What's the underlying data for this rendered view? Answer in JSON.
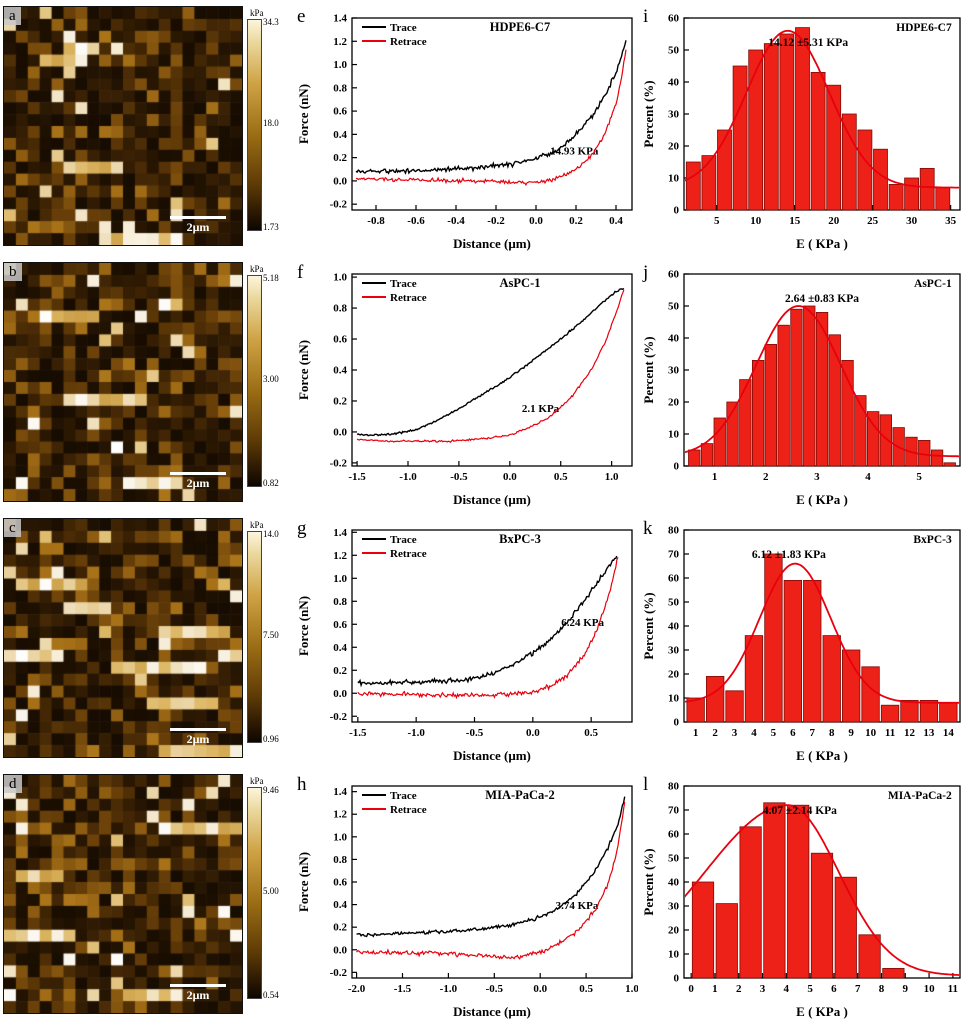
{
  "colors": {
    "bar": "#ee2119",
    "bar_edge": "#7e0b05",
    "fit": "#e8000d",
    "trace": "#000000",
    "retrace": "#e8000d"
  },
  "maps": [
    {
      "panel": "a",
      "unit": "kPa",
      "ticks": [
        "34.3",
        "18.0",
        "1.73"
      ],
      "scale_label": "2μm",
      "seed": 101
    },
    {
      "panel": "b",
      "unit": "kPa",
      "ticks": [
        "5.18",
        "3.00",
        "0.82"
      ],
      "scale_label": "2μm",
      "seed": 202
    },
    {
      "panel": "c",
      "unit": "kPa",
      "ticks": [
        "14.0",
        "7.50",
        "0.96"
      ],
      "scale_label": "2μm",
      "seed": 303
    },
    {
      "panel": "d",
      "unit": "kPa",
      "ticks": [
        "9.46",
        "5.00",
        "0.54"
      ],
      "scale_label": "2μm",
      "seed": 404
    }
  ],
  "chart_data": [
    {
      "panel": "e",
      "type": "line",
      "title": "HDPE6-C7",
      "xlabel": "Distance (μm)",
      "ylabel": "Force (nN)",
      "xlim": [
        -0.92,
        0.48
      ],
      "ylim": [
        -0.25,
        1.4
      ],
      "xticks": [
        -0.8,
        -0.6,
        -0.4,
        -0.2,
        0.0,
        0.2,
        0.4
      ],
      "yticks": [
        -0.2,
        0.0,
        0.2,
        0.4,
        0.6,
        0.8,
        1.0,
        1.2,
        1.4
      ],
      "legend": [
        "Trace",
        "Retrace"
      ],
      "annotation": "14.93 KPa",
      "ann_pos": [
        0.88,
        0.71
      ],
      "series": [
        {
          "name": "Trace",
          "color": "#000000",
          "noise": 0.013,
          "points": [
            [
              -0.9,
              0.08
            ],
            [
              -0.75,
              0.085
            ],
            [
              -0.6,
              0.09
            ],
            [
              -0.45,
              0.1
            ],
            [
              -0.3,
              0.115
            ],
            [
              -0.2,
              0.13
            ],
            [
              -0.1,
              0.155
            ],
            [
              -0.02,
              0.18
            ],
            [
              0.05,
              0.22
            ],
            [
              0.12,
              0.28
            ],
            [
              0.2,
              0.4
            ],
            [
              0.28,
              0.56
            ],
            [
              0.35,
              0.75
            ],
            [
              0.41,
              0.97
            ],
            [
              0.45,
              1.2
            ]
          ]
        },
        {
          "name": "Retrace",
          "color": "#e8000d",
          "noise": 0.01,
          "points": [
            [
              -0.9,
              0.02
            ],
            [
              -0.7,
              0.01
            ],
            [
              -0.5,
              0.005
            ],
            [
              -0.3,
              0.0
            ],
            [
              -0.15,
              -0.01
            ],
            [
              -0.05,
              -0.015
            ],
            [
              0.05,
              0.0
            ],
            [
              0.12,
              0.03
            ],
            [
              0.2,
              0.1
            ],
            [
              0.28,
              0.22
            ],
            [
              0.35,
              0.42
            ],
            [
              0.41,
              0.72
            ],
            [
              0.45,
              1.12
            ]
          ]
        }
      ]
    },
    {
      "panel": "f",
      "type": "line",
      "title": "AsPC-1",
      "xlabel": "Distance (μm)",
      "ylabel": "Force (nN)",
      "xlim": [
        -1.55,
        1.2
      ],
      "ylim": [
        -0.22,
        1.02
      ],
      "xticks": [
        -1.5,
        -1.0,
        -0.5,
        0.0,
        0.5,
        1.0
      ],
      "yticks": [
        -0.2,
        0.0,
        0.2,
        0.4,
        0.6,
        0.8,
        1.0
      ],
      "legend": [
        "Trace",
        "Retrace"
      ],
      "annotation": "2.1 KPa",
      "ann_pos": [
        0.74,
        0.72
      ],
      "series": [
        {
          "name": "Trace",
          "color": "#000000",
          "noise": 0.004,
          "points": [
            [
              -1.5,
              -0.02
            ],
            [
              -1.3,
              -0.02
            ],
            [
              -1.1,
              -0.01
            ],
            [
              -0.9,
              0.02
            ],
            [
              -0.7,
              0.08
            ],
            [
              -0.5,
              0.15
            ],
            [
              -0.3,
              0.23
            ],
            [
              -0.1,
              0.31
            ],
            [
              0.1,
              0.4
            ],
            [
              0.3,
              0.5
            ],
            [
              0.5,
              0.6
            ],
            [
              0.7,
              0.71
            ],
            [
              0.9,
              0.83
            ],
            [
              1.05,
              0.91
            ],
            [
              1.12,
              0.93
            ]
          ]
        },
        {
          "name": "Retrace",
          "color": "#e8000d",
          "noise": 0.004,
          "points": [
            [
              -1.5,
              -0.05
            ],
            [
              -1.2,
              -0.06
            ],
            [
              -0.9,
              -0.06
            ],
            [
              -0.6,
              -0.06
            ],
            [
              -0.4,
              -0.05
            ],
            [
              -0.2,
              -0.04
            ],
            [
              0.0,
              -0.02
            ],
            [
              0.2,
              0.03
            ],
            [
              0.4,
              0.1
            ],
            [
              0.6,
              0.22
            ],
            [
              0.8,
              0.4
            ],
            [
              0.95,
              0.6
            ],
            [
              1.05,
              0.78
            ],
            [
              1.12,
              0.92
            ]
          ]
        }
      ]
    },
    {
      "panel": "g",
      "type": "line",
      "title": "BxPC-3",
      "xlabel": "Distance (μm)",
      "ylabel": "Force (nN)",
      "xlim": [
        -1.55,
        0.85
      ],
      "ylim": [
        -0.25,
        1.42
      ],
      "xticks": [
        -1.5,
        -1.0,
        -0.5,
        0.0,
        0.5
      ],
      "yticks": [
        -0.2,
        0.0,
        0.2,
        0.4,
        0.6,
        0.8,
        1.0,
        1.2,
        1.4
      ],
      "legend": [
        "Trace",
        "Retrace"
      ],
      "annotation": "6.24 KPa",
      "ann_pos": [
        0.9,
        0.5
      ],
      "series": [
        {
          "name": "Trace",
          "color": "#000000",
          "noise": 0.012,
          "points": [
            [
              -1.5,
              0.09
            ],
            [
              -1.3,
              0.09
            ],
            [
              -1.1,
              0.095
            ],
            [
              -0.9,
              0.1
            ],
            [
              -0.75,
              0.105
            ],
            [
              -0.6,
              0.115
            ],
            [
              -0.45,
              0.14
            ],
            [
              -0.3,
              0.19
            ],
            [
              -0.15,
              0.26
            ],
            [
              0.0,
              0.35
            ],
            [
              0.15,
              0.47
            ],
            [
              0.3,
              0.62
            ],
            [
              0.45,
              0.82
            ],
            [
              0.58,
              1.0
            ],
            [
              0.68,
              1.14
            ],
            [
              0.72,
              1.2
            ]
          ]
        },
        {
          "name": "Retrace",
          "color": "#e8000d",
          "noise": 0.012,
          "points": [
            [
              -1.5,
              0.0
            ],
            [
              -1.3,
              -0.005
            ],
            [
              -1.1,
              -0.01
            ],
            [
              -0.9,
              -0.015
            ],
            [
              -0.7,
              -0.02
            ],
            [
              -0.5,
              -0.02
            ],
            [
              -0.3,
              -0.015
            ],
            [
              -0.15,
              -0.005
            ],
            [
              0.0,
              0.01
            ],
            [
              0.15,
              0.06
            ],
            [
              0.3,
              0.16
            ],
            [
              0.45,
              0.35
            ],
            [
              0.55,
              0.55
            ],
            [
              0.63,
              0.78
            ],
            [
              0.69,
              1.0
            ],
            [
              0.73,
              1.2
            ]
          ]
        }
      ]
    },
    {
      "panel": "h",
      "type": "line",
      "title": "MIA-PaCa-2",
      "xlabel": "Distance (μm)",
      "ylabel": "Force (nN)",
      "xlim": [
        -2.05,
        1.0
      ],
      "ylim": [
        -0.25,
        1.45
      ],
      "xticks": [
        -2.0,
        -1.5,
        -1.0,
        -0.5,
        0.0,
        0.5,
        1.0
      ],
      "yticks": [
        -0.2,
        0.0,
        0.2,
        0.4,
        0.6,
        0.8,
        1.0,
        1.2,
        1.4
      ],
      "legend": [
        "Trace",
        "Retrace"
      ],
      "annotation": "3.74 KPa",
      "ann_pos": [
        0.88,
        0.64
      ],
      "series": [
        {
          "name": "Trace",
          "color": "#000000",
          "noise": 0.01,
          "points": [
            [
              -2.0,
              0.13
            ],
            [
              -1.8,
              0.135
            ],
            [
              -1.6,
              0.14
            ],
            [
              -1.4,
              0.15
            ],
            [
              -1.2,
              0.155
            ],
            [
              -1.0,
              0.16
            ],
            [
              -0.8,
              0.175
            ],
            [
              -0.6,
              0.19
            ],
            [
              -0.4,
              0.21
            ],
            [
              -0.2,
              0.24
            ],
            [
              0.0,
              0.29
            ],
            [
              0.2,
              0.37
            ],
            [
              0.4,
              0.5
            ],
            [
              0.6,
              0.7
            ],
            [
              0.75,
              0.92
            ],
            [
              0.85,
              1.12
            ],
            [
              0.92,
              1.35
            ]
          ]
        },
        {
          "name": "Retrace",
          "color": "#e8000d",
          "noise": 0.012,
          "points": [
            [
              -2.0,
              -0.02
            ],
            [
              -1.8,
              -0.025
            ],
            [
              -1.6,
              -0.02
            ],
            [
              -1.4,
              -0.03
            ],
            [
              -1.2,
              -0.025
            ],
            [
              -1.0,
              -0.03
            ],
            [
              -0.8,
              -0.04
            ],
            [
              -0.6,
              -0.05
            ],
            [
              -0.45,
              -0.065
            ],
            [
              -0.3,
              -0.07
            ],
            [
              -0.15,
              -0.05
            ],
            [
              0.0,
              -0.02
            ],
            [
              0.2,
              0.05
            ],
            [
              0.4,
              0.16
            ],
            [
              0.6,
              0.35
            ],
            [
              0.75,
              0.6
            ],
            [
              0.85,
              0.92
            ],
            [
              0.92,
              1.3
            ]
          ]
        }
      ]
    },
    {
      "panel": "i",
      "type": "bar",
      "title": "HDPE6-C7",
      "annotation": "14.12 ±5.31 KPa",
      "ann_pos": [
        0.45,
        0.1
      ],
      "xlabel": "E ( KPa )",
      "ylabel": "Percent (%)",
      "xlim": [
        0.8,
        36.2
      ],
      "ylim": [
        0,
        60
      ],
      "xticks": [
        5,
        10,
        15,
        20,
        25,
        30,
        35
      ],
      "yticks": [
        0,
        10,
        20,
        30,
        40,
        50,
        60
      ],
      "bin_width": 2,
      "centers": [
        2,
        4,
        6,
        8,
        10,
        12,
        14,
        16,
        18,
        20,
        22,
        24,
        26,
        28,
        30,
        32,
        34
      ],
      "values": [
        15,
        17,
        25,
        45,
        50,
        52,
        55,
        57,
        43,
        39,
        30,
        25,
        19,
        8,
        10,
        13,
        7
      ],
      "fit": {
        "mean": 14.12,
        "sd": 5.31,
        "amp": 49,
        "base": 7
      }
    },
    {
      "panel": "j",
      "type": "bar",
      "title": "AsPC-1",
      "annotation": "2.64 ±0.83 KPa",
      "ann_pos": [
        0.5,
        0.1
      ],
      "xlabel": "E ( KPa )",
      "ylabel": "Percent (%)",
      "xlim": [
        0.4,
        5.8
      ],
      "ylim": [
        0,
        60
      ],
      "xticks": [
        1,
        2,
        3,
        4,
        5
      ],
      "yticks": [
        0,
        10,
        20,
        30,
        40,
        50,
        60
      ],
      "bin_width": 0.25,
      "centers": [
        0.6,
        0.85,
        1.1,
        1.35,
        1.6,
        1.85,
        2.1,
        2.35,
        2.6,
        2.85,
        3.1,
        3.35,
        3.6,
        3.85,
        4.1,
        4.35,
        4.6,
        4.85,
        5.1,
        5.35,
        5.6
      ],
      "values": [
        5,
        7,
        15,
        20,
        27,
        33,
        38,
        44,
        49,
        50,
        48,
        41,
        33,
        22,
        17,
        16,
        12,
        9,
        8,
        5,
        1
      ],
      "fit": {
        "mean": 2.64,
        "sd": 0.83,
        "amp": 47,
        "base": 3
      }
    },
    {
      "panel": "k",
      "type": "bar",
      "title": "BxPC-3",
      "annotation": "6.12 ±1.83 KPa",
      "ann_pos": [
        0.38,
        0.1
      ],
      "xlabel": "E ( KPa )",
      "ylabel": "Percent (%)",
      "xlim": [
        0.4,
        14.6
      ],
      "ylim": [
        0,
        80
      ],
      "xticks": [
        1,
        2,
        3,
        4,
        5,
        6,
        7,
        8,
        9,
        10,
        11,
        12,
        13,
        14
      ],
      "yticks": [
        0,
        10,
        20,
        30,
        40,
        50,
        60,
        70,
        80
      ],
      "bin_width": 1,
      "centers": [
        1,
        2,
        3,
        4,
        5,
        6,
        7,
        8,
        9,
        10,
        11,
        12,
        13,
        14
      ],
      "values": [
        10,
        19,
        13,
        36,
        70,
        59,
        59,
        36,
        30,
        23,
        7,
        9,
        9,
        8
      ],
      "fit": {
        "mean": 6.12,
        "sd": 1.83,
        "amp": 58,
        "base": 8
      }
    },
    {
      "panel": "l",
      "type": "bar",
      "title": "MIA-PaCa-2",
      "annotation": "4.07 ±2.14 KPa",
      "ann_pos": [
        0.42,
        0.1
      ],
      "xlabel": "E ( KPa )",
      "ylabel": "Percent (%)",
      "xlim": [
        -0.3,
        11.3
      ],
      "ylim": [
        0,
        80
      ],
      "xticks": [
        0,
        1,
        2,
        3,
        4,
        5,
        6,
        7,
        8,
        9,
        10,
        11
      ],
      "yticks": [
        0,
        10,
        20,
        30,
        40,
        50,
        60,
        70,
        80
      ],
      "bin_width": 1,
      "centers": [
        0.5,
        1.5,
        2.5,
        3.5,
        4.5,
        5.5,
        6.5,
        7.5,
        8.5
      ],
      "values": [
        40,
        31,
        63,
        73,
        72,
        52,
        42,
        18,
        4
      ],
      "fit": {
        "mean": 4.07,
        "sd": 2.14,
        "sd_left": 3.5,
        "amp": 71,
        "base": 1
      }
    }
  ]
}
